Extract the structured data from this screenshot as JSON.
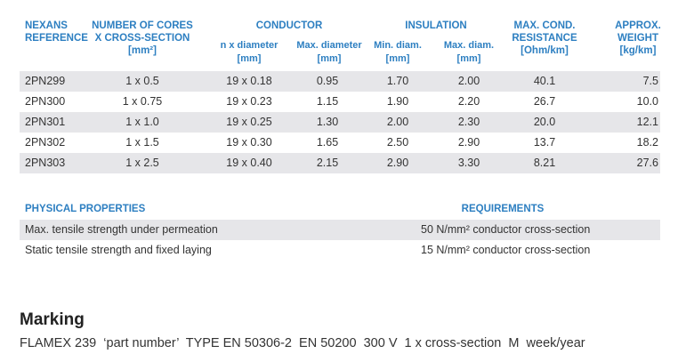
{
  "table": {
    "header": {
      "reference": [
        "NEXANS",
        "REFERENCE"
      ],
      "cores": [
        "NUMBER OF CORES",
        "X CROSS-SECTION",
        "[mm²]"
      ],
      "conductor": {
        "title": "CONDUCTOR",
        "columns": [
          [
            "n x diameter",
            "[mm]"
          ],
          [
            "Max. diameter",
            "[mm]"
          ]
        ]
      },
      "insulation": {
        "title": "INSULATION",
        "columns": [
          [
            "Min. diam.",
            "[mm]"
          ],
          [
            "Max. diam.",
            "[mm]"
          ]
        ]
      },
      "resistance": [
        "MAX. COND.",
        "RESISTANCE",
        "[Ohm/km]"
      ],
      "weight": [
        "APPROX.",
        "WEIGHT",
        "[kg/km]"
      ]
    },
    "rows": [
      [
        "2PN299",
        "1 x 0.5",
        "19 x 0.18",
        "0.95",
        "1.70",
        "2.00",
        "40.1",
        "7.5"
      ],
      [
        "2PN300",
        "1 x 0.75",
        "19 x 0.23",
        "1.15",
        "1.90",
        "2.20",
        "26.7",
        "10.0"
      ],
      [
        "2PN301",
        "1 x 1.0",
        "19 x 0.25",
        "1.30",
        "2.00",
        "2.30",
        "20.0",
        "12.1"
      ],
      [
        "2PN302",
        "1 x 1.5",
        "19 x 0.30",
        "1.65",
        "2.50",
        "2.90",
        "13.7",
        "18.2"
      ],
      [
        "2PN303",
        "1 x 2.5",
        "19 x 0.40",
        "2.15",
        "2.90",
        "3.30",
        "8.21",
        "27.6"
      ]
    ]
  },
  "properties": {
    "header": [
      "PHYSICAL PROPERTIES",
      "REQUIREMENTS"
    ],
    "rows": [
      [
        "Max. tensile strength under permeation",
        "50 N/mm² conductor cross-section"
      ],
      [
        "Static tensile strength and fixed laying",
        "15 N/mm² conductor cross-section"
      ]
    ]
  },
  "marking": {
    "title": "Marking",
    "text": "FLAMEX 239  ‘part number’  TYPE EN 50306-2  EN 50200  300 V  1 x cross-section  M  week/year"
  }
}
